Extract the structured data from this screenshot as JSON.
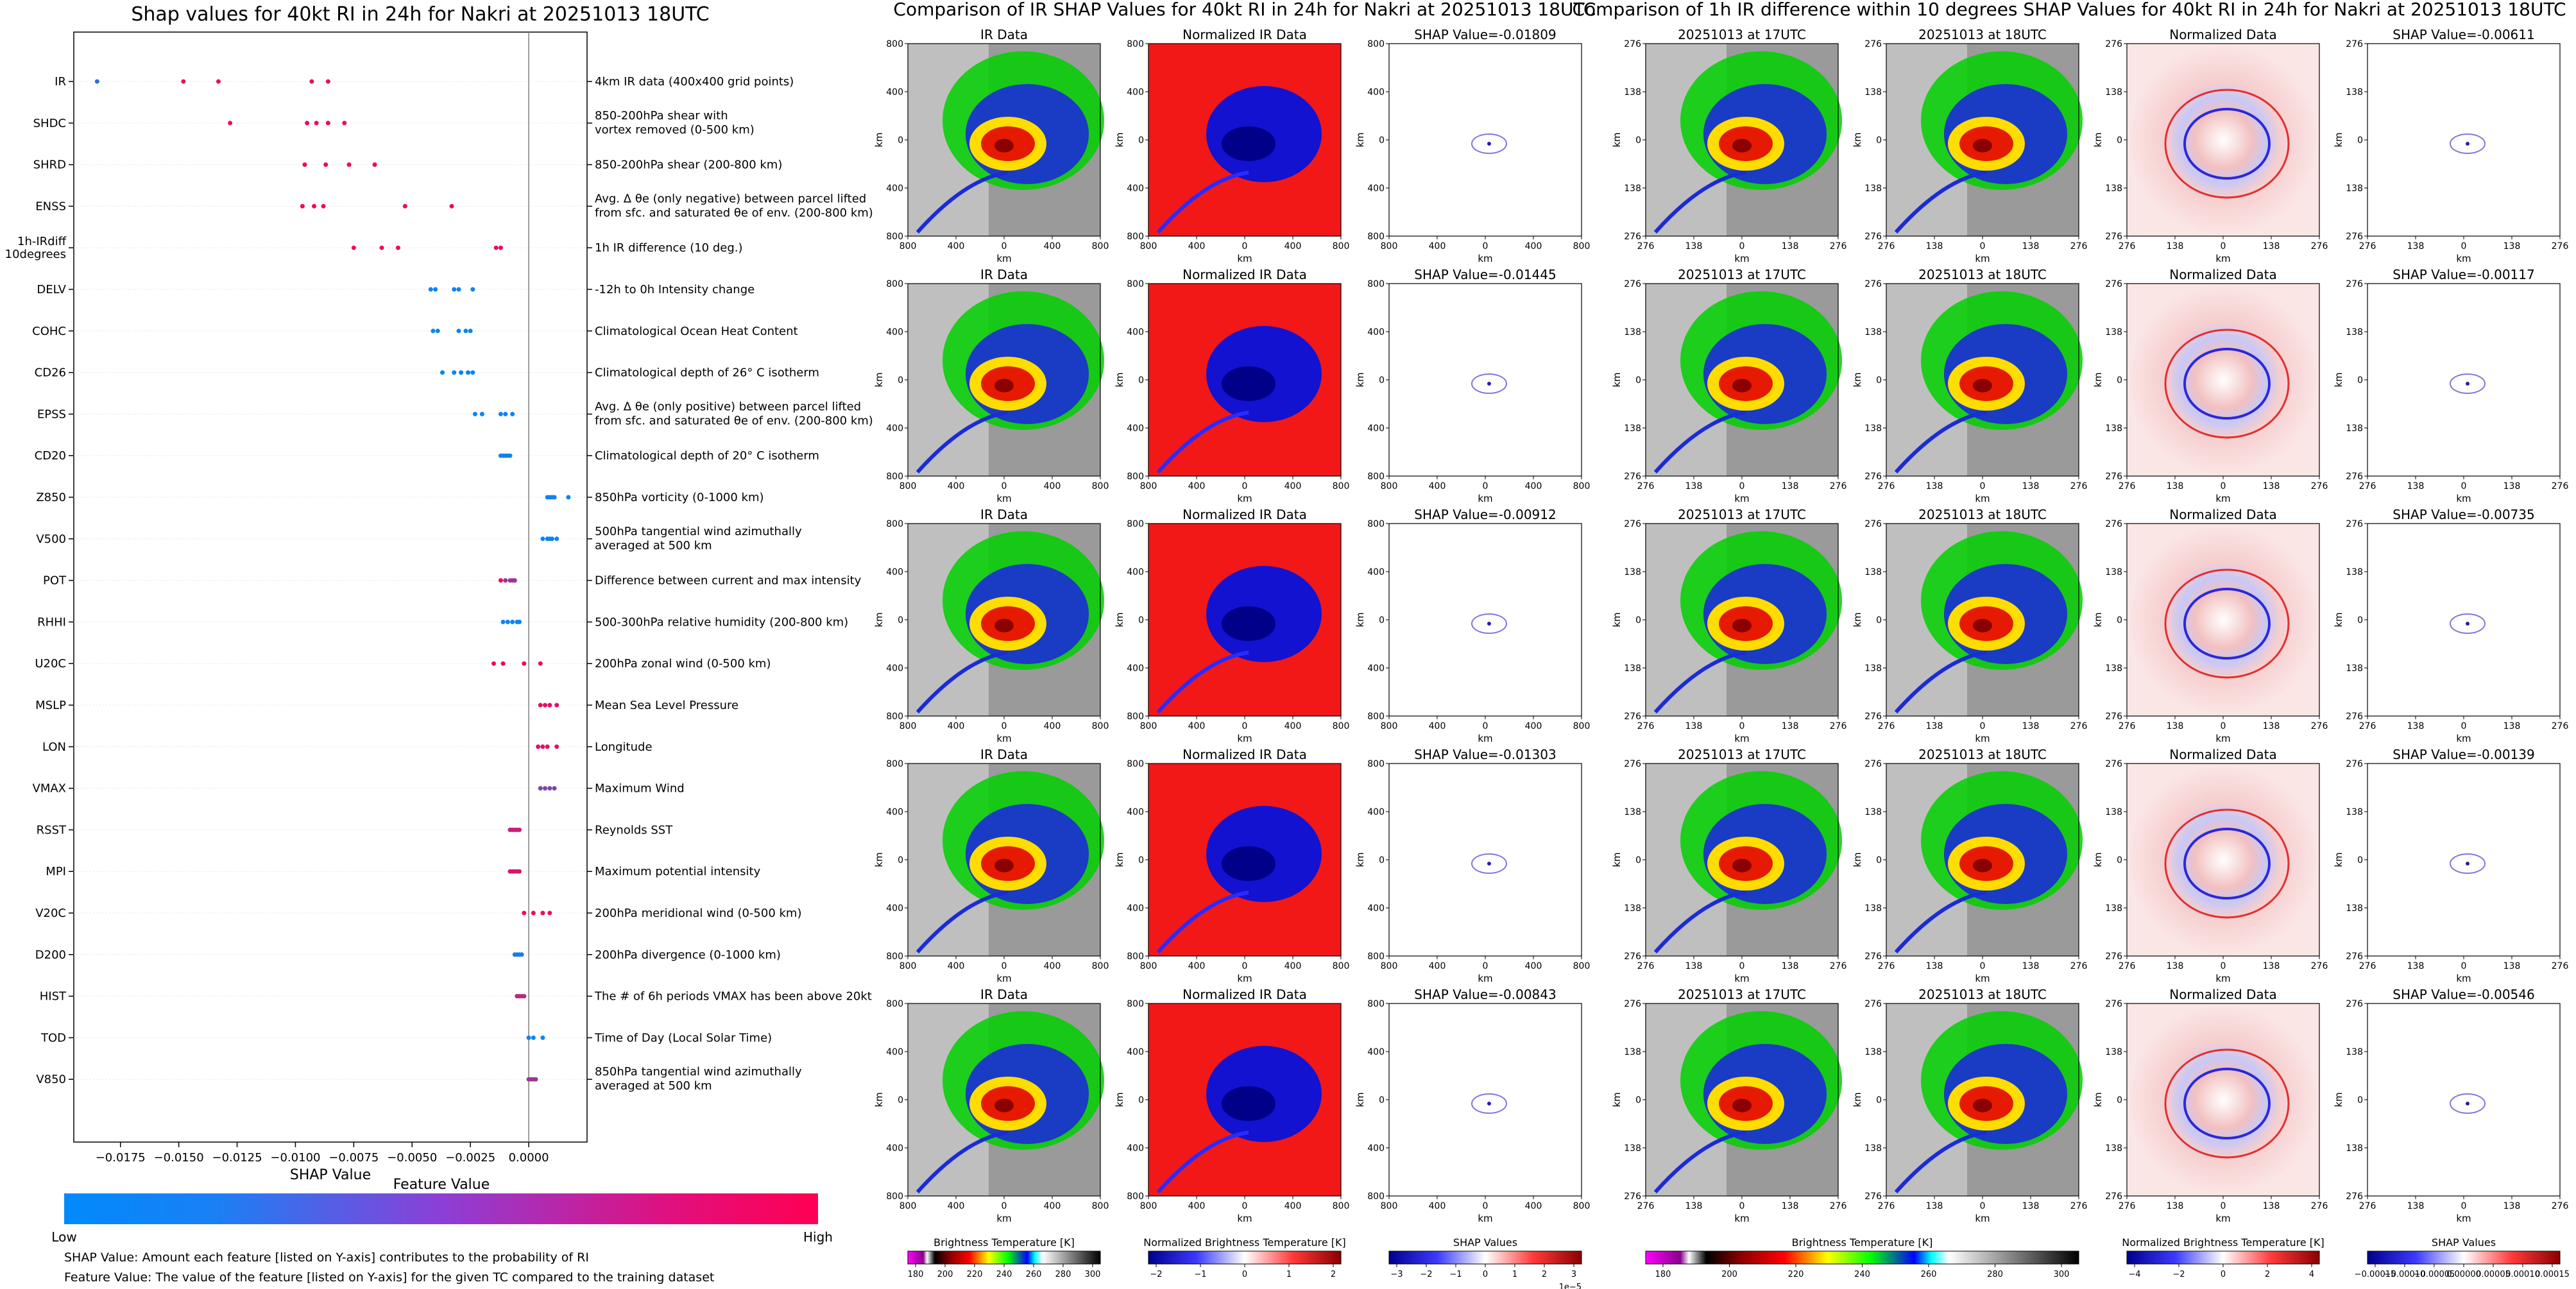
{
  "colors": {
    "low": "#1e88e5",
    "high": "#ff0052",
    "mid": "#9c27b0"
  },
  "summary": {
    "title": "Shap values for 40kt RI in 24h for Nakri at 20251013 18UTC",
    "xlabel": "SHAP Value",
    "colorbar_title": "Feature Value",
    "low_label": "Low",
    "high_label": "High",
    "note1": "SHAP Value: Amount each feature [listed on Y-axis] contributes to the probability of RI",
    "note2": "Feature Value: The value of the feature [listed on Y-axis] for the given TC compared to the training dataset"
  },
  "chart_data": [
    {
      "type": "scatter",
      "title": "Shap values for 40kt RI in 24h for Nakri at 20251013 18UTC",
      "xlabel": "SHAP Value",
      "xlim": [
        -0.0195,
        0.0025
      ],
      "x_ticks": [
        -0.0175,
        -0.015,
        -0.0125,
        -0.01,
        -0.0075,
        -0.005,
        -0.0025,
        0.0
      ],
      "x_tick_labels": [
        "−0.0175",
        "−0.0150",
        "−0.0125",
        "−0.0100",
        "−0.0075",
        "−0.0050",
        "−0.0025",
        "0.0000"
      ],
      "features": [
        {
          "name": "IR",
          "desc": [
            "4km IR data (400x400 grid points)"
          ],
          "values": [
            -0.0185,
            -0.0148,
            -0.0133,
            -0.0093,
            -0.0086
          ],
          "colors": [
            0.2,
            0.9,
            0.9,
            0.9,
            0.9
          ]
        },
        {
          "name": "SHDC",
          "desc": [
            "850-200hPa shear with",
            "vortex removed (0-500 km)"
          ],
          "values": [
            -0.0128,
            -0.0095,
            -0.0091,
            -0.0086,
            -0.0079
          ],
          "colors": [
            0.9,
            0.95,
            0.95,
            0.95,
            0.95
          ]
        },
        {
          "name": "SHRD",
          "desc": [
            "850-200hPa shear (200-800 km)"
          ],
          "values": [
            -0.0096,
            -0.0087,
            -0.0077,
            -0.0066
          ],
          "colors": [
            0.95,
            0.95,
            0.95,
            0.95
          ]
        },
        {
          "name": "ENSS",
          "desc": [
            "Avg. Δ θe (only negative) between parcel lifted",
            "from sfc. and saturated θe of env. (200-800 km)"
          ],
          "values": [
            -0.0097,
            -0.0092,
            -0.0088,
            -0.0053,
            -0.0033
          ],
          "colors": [
            0.95,
            0.95,
            0.95,
            0.95,
            0.95
          ]
        },
        {
          "name": "1h-IRdiff 10degrees",
          "desc": [
            "1h IR difference (10 deg.)"
          ],
          "values": [
            -0.0075,
            -0.0063,
            -0.0056,
            -0.0014,
            -0.0012
          ],
          "colors": [
            0.95,
            0.95,
            0.95,
            0.9,
            0.9
          ]
        },
        {
          "name": "DELV",
          "desc": [
            "-12h to 0h Intensity change"
          ],
          "values": [
            -0.0042,
            -0.004,
            -0.0032,
            -0.003,
            -0.0024
          ],
          "colors": [
            0.05,
            0.05,
            0.05,
            0.05,
            0.05
          ]
        },
        {
          "name": "COHC",
          "desc": [
            "Climatological Ocean Heat Content"
          ],
          "values": [
            -0.0041,
            -0.0039,
            -0.003,
            -0.0027,
            -0.0025
          ],
          "colors": [
            0.05,
            0.05,
            0.05,
            0.05,
            0.05
          ]
        },
        {
          "name": "CD26",
          "desc": [
            "Climatological depth of 26° C isotherm"
          ],
          "values": [
            -0.0037,
            -0.0032,
            -0.0029,
            -0.0026,
            -0.0024
          ],
          "colors": [
            0.05,
            0.05,
            0.05,
            0.05,
            0.05
          ]
        },
        {
          "name": "EPSS",
          "desc": [
            "Avg. Δ θe (only positive) between parcel lifted",
            "from sfc. and saturated θe of env. (200-800 km)"
          ],
          "values": [
            -0.0023,
            -0.002,
            -0.0012,
            -0.001,
            -0.0007
          ],
          "colors": [
            0.05,
            0.05,
            0.05,
            0.05,
            0.05
          ]
        },
        {
          "name": "CD20",
          "desc": [
            "Climatological depth of 20° C isotherm"
          ],
          "values": [
            -0.0012,
            -0.0011,
            -0.001,
            -0.0009,
            -0.0008
          ],
          "colors": [
            0.05,
            0.05,
            0.05,
            0.05,
            0.05
          ]
        },
        {
          "name": "Z850",
          "desc": [
            "850hPa vorticity (0-1000 km)"
          ],
          "values": [
            0.0008,
            0.0009,
            0.001,
            0.0011,
            0.0017
          ],
          "colors": [
            0.05,
            0.05,
            0.05,
            0.05,
            0.05
          ]
        },
        {
          "name": "V500",
          "desc": [
            "500hPa tangential wind azimuthally",
            "averaged at 500 km"
          ],
          "values": [
            0.0006,
            0.0008,
            0.0009,
            0.001,
            0.0012
          ],
          "colors": [
            0.05,
            0.05,
            0.05,
            0.05,
            0.05
          ]
        },
        {
          "name": "POT",
          "desc": [
            "Difference between current and max intensity"
          ],
          "values": [
            -0.0012,
            -0.001,
            -0.0008,
            -0.0007,
            -0.0006
          ],
          "colors": [
            0.95,
            0.6,
            0.6,
            0.6,
            0.6
          ]
        },
        {
          "name": "RHHI",
          "desc": [
            "500-300hPa relative humidity (200-800 km)"
          ],
          "values": [
            -0.0011,
            -0.0009,
            -0.0007,
            -0.0005,
            -0.0004
          ],
          "colors": [
            0.05,
            0.05,
            0.05,
            0.05,
            0.05
          ]
        },
        {
          "name": "U20C",
          "desc": [
            "200hPa zonal wind (0-500 km)"
          ],
          "values": [
            -0.0015,
            -0.0011,
            -0.0002,
            0.0005
          ],
          "colors": [
            0.95,
            0.95,
            0.95,
            0.95
          ]
        },
        {
          "name": "MSLP",
          "desc": [
            "Mean Sea Level Pressure"
          ],
          "values": [
            0.0005,
            0.0007,
            0.0009,
            0.0012
          ],
          "colors": [
            0.9,
            0.9,
            0.9,
            0.9
          ]
        },
        {
          "name": "LON",
          "desc": [
            "Longitude"
          ],
          "values": [
            0.0004,
            0.0006,
            0.0008,
            0.0012
          ],
          "colors": [
            0.9,
            0.9,
            0.9,
            0.9
          ]
        },
        {
          "name": "VMAX",
          "desc": [
            "Maximum Wind"
          ],
          "values": [
            0.0005,
            0.0007,
            0.0009,
            0.0011
          ],
          "colors": [
            0.5,
            0.5,
            0.5,
            0.5
          ]
        },
        {
          "name": "RSST",
          "desc": [
            "Reynolds SST"
          ],
          "values": [
            -0.0008,
            -0.0007,
            -0.0006,
            -0.0005,
            -0.0004
          ],
          "colors": [
            0.8,
            0.8,
            0.8,
            0.8,
            0.8
          ]
        },
        {
          "name": "MPI",
          "desc": [
            "Maximum potential intensity"
          ],
          "values": [
            -0.0008,
            -0.0007,
            -0.0006,
            -0.0005,
            -0.0004
          ],
          "colors": [
            0.85,
            0.85,
            0.85,
            0.85,
            0.85
          ]
        },
        {
          "name": "V20C",
          "desc": [
            "200hPa meridional wind (0-500 km)"
          ],
          "values": [
            -0.0002,
            0.0002,
            0.0006,
            0.0009
          ],
          "colors": [
            0.95,
            0.95,
            0.95,
            0.95
          ]
        },
        {
          "name": "D200",
          "desc": [
            "200hPa divergence (0-1000 km)"
          ],
          "values": [
            -0.0006,
            -0.0005,
            -0.0004,
            -0.0003
          ],
          "colors": [
            0.1,
            0.1,
            0.1,
            0.1
          ]
        },
        {
          "name": "HIST",
          "desc": [
            "The # of 6h periods VMAX has been above 20kt"
          ],
          "values": [
            -0.0005,
            -0.0004,
            -0.0003,
            -0.0002
          ],
          "colors": [
            0.7,
            0.7,
            0.7,
            0.7
          ]
        },
        {
          "name": "TOD",
          "desc": [
            "Time of Day (Local Solar Time)"
          ],
          "values": [
            0.0,
            0.0002,
            0.0006
          ],
          "colors": [
            0.05,
            0.05,
            0.05
          ]
        },
        {
          "name": "V850",
          "desc": [
            "850hPa tangential wind azimuthally",
            "averaged at 500 km"
          ],
          "values": [
            0.0,
            0.0001,
            0.0002,
            0.0003
          ],
          "colors": [
            0.6,
            0.6,
            0.6,
            0.6
          ]
        }
      ]
    },
    {
      "type": "heatmap",
      "title": "Comparison of IR SHAP Values for 40kt RI in 24h for Nakri at 20251013 18UTC",
      "column_titles": [
        "IR Data",
        "Normalized IR Data"
      ],
      "shap_titles": [
        "SHAP Value=-0.01809",
        "SHAP Value=-0.01445",
        "SHAP Value=-0.00912",
        "SHAP Value=-0.01303",
        "SHAP Value=-0.00843"
      ],
      "axis_label": "km",
      "ticks": [
        "800",
        "400",
        "0",
        "400",
        "800"
      ],
      "colorbars": [
        {
          "label": "Brightness Temperature [K]",
          "ticks": [
            "180",
            "200",
            "220",
            "240",
            "260",
            "280",
            "300"
          ]
        },
        {
          "label": "Normalized Brightness Temperature [K]",
          "ticks": [
            "−2",
            "−1",
            "0",
            "1",
            "2"
          ]
        },
        {
          "label": "SHAP Values",
          "ticks": [
            "−3",
            "−2",
            "−1",
            "0",
            "1",
            "2",
            "3"
          ],
          "scale": "1e−5"
        }
      ]
    },
    {
      "type": "heatmap",
      "title": "Comparison of 1h IR difference within 10 degrees SHAP Values for 40kt RI in 24h for Nakri at 20251013 18UTC",
      "column_titles": [
        "20251013 at 17UTC",
        "20251013 at 18UTC",
        "Normalized Data"
      ],
      "shap_titles": [
        "SHAP Value=-0.00611",
        "SHAP Value=-0.00117",
        "SHAP Value=-0.00735",
        "SHAP Value=-0.00139",
        "SHAP Value=-0.00546"
      ],
      "axis_label": "km",
      "ticks": [
        "276",
        "138",
        "0",
        "138",
        "276"
      ],
      "colorbars": [
        {
          "label": "Brightness Temperature [K]",
          "ticks": [
            "180",
            "200",
            "220",
            "240",
            "260",
            "280",
            "300"
          ]
        },
        {
          "label": "Normalized Brightness Temperature [K]",
          "ticks": [
            "−4",
            "−2",
            "0",
            "2",
            "4"
          ]
        },
        {
          "label": "SHAP Values",
          "ticks": [
            "−0.00015",
            "−0.00010",
            "−0.00005",
            "0.00000",
            "0.00005",
            "0.00010",
            "0.00015"
          ]
        }
      ]
    }
  ]
}
